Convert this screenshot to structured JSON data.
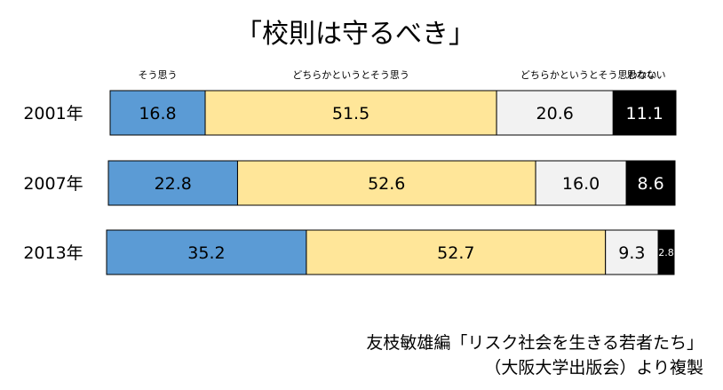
{
  "chart_data": {
    "type": "bar",
    "orientation": "horizontal",
    "stacked": true,
    "title": "「校則は守るべき」",
    "categories": [
      "2001年",
      "2007年",
      "2013年"
    ],
    "series": [
      {
        "name": "そう思う",
        "values": [
          16.8,
          22.8,
          35.2
        ],
        "color": "#5b9bd5",
        "text_color": "#000000"
      },
      {
        "name": "どちらかというとそう思う",
        "values": [
          51.5,
          52.6,
          52.7
        ],
        "color": "#ffe699",
        "text_color": "#000000"
      },
      {
        "name": "どちらかというとそう思わない",
        "values": [
          20.6,
          16.0,
          9.3
        ],
        "color": "#f2f2f2",
        "text_color": "#000000"
      },
      {
        "name": "思わない",
        "values": [
          11.1,
          8.6,
          2.8
        ],
        "color": "#000000",
        "text_color": "#ffffff"
      }
    ],
    "value_labels": [
      [
        "16.8",
        "51.5",
        "20.6",
        "11.1"
      ],
      [
        "22.8",
        "52.6",
        "16.0",
        "8.6"
      ],
      [
        "35.2",
        "52.7",
        "9.3",
        "2.8"
      ]
    ],
    "xlim": [
      0,
      100
    ],
    "grid": false,
    "legend_position": "top"
  },
  "source": {
    "line1": "友枝敏雄編「リスク社会を生きる若者たち」",
    "line2": "（大阪大学出版会）より複製"
  }
}
